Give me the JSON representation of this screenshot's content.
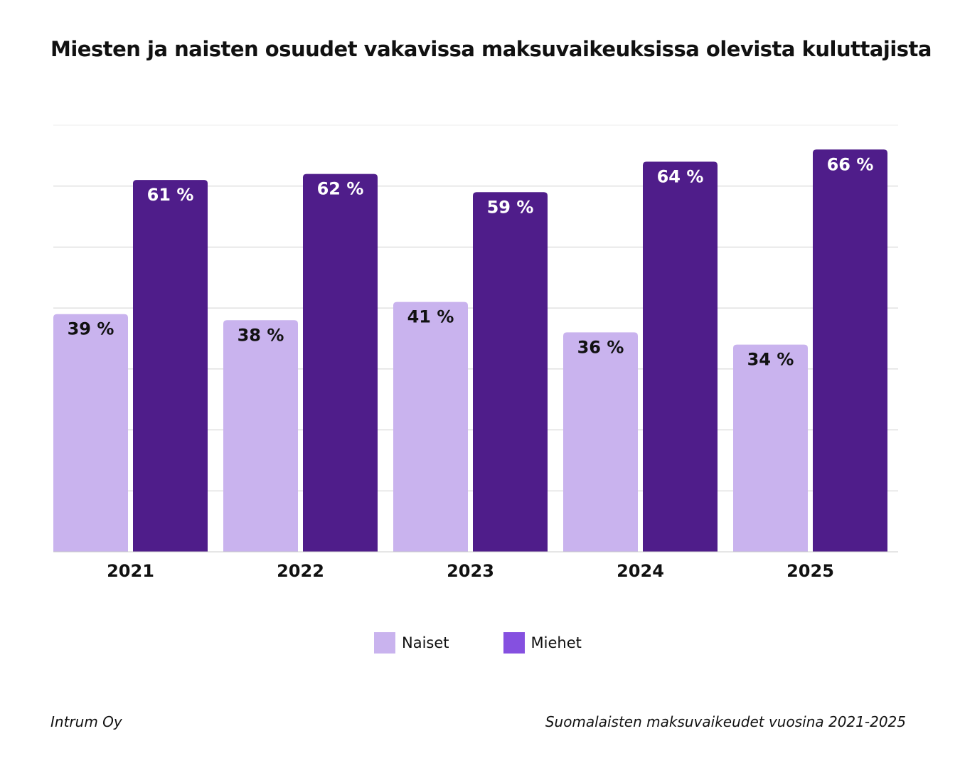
{
  "chart_data": {
    "type": "bar",
    "title": "Miesten ja naisten osuudet vakavissa maksuvaikeuksissa olevista kuluttajista",
    "categories": [
      "2021",
      "2022",
      "2023",
      "2024",
      "2025"
    ],
    "series": [
      {
        "name": "Naiset",
        "values": [
          39,
          38,
          41,
          36,
          34
        ],
        "color": "#c9b3ee",
        "legend_color": "#c9b3ee",
        "label_color": "#111111"
      },
      {
        "name": "Miehet",
        "values": [
          61,
          62,
          59,
          64,
          66
        ],
        "color": "#4f1d8a",
        "legend_color": "#8550e0",
        "label_color": "#ffffff"
      }
    ],
    "value_suffix": " %",
    "ylim": [
      0,
      70
    ],
    "grid": true,
    "grid_step": 10,
    "legend_position": "bottom"
  },
  "footer": {
    "source": "Intrum Oy",
    "note": "Suomalaisten maksuvaikeudet vuosina 2021-2025"
  }
}
